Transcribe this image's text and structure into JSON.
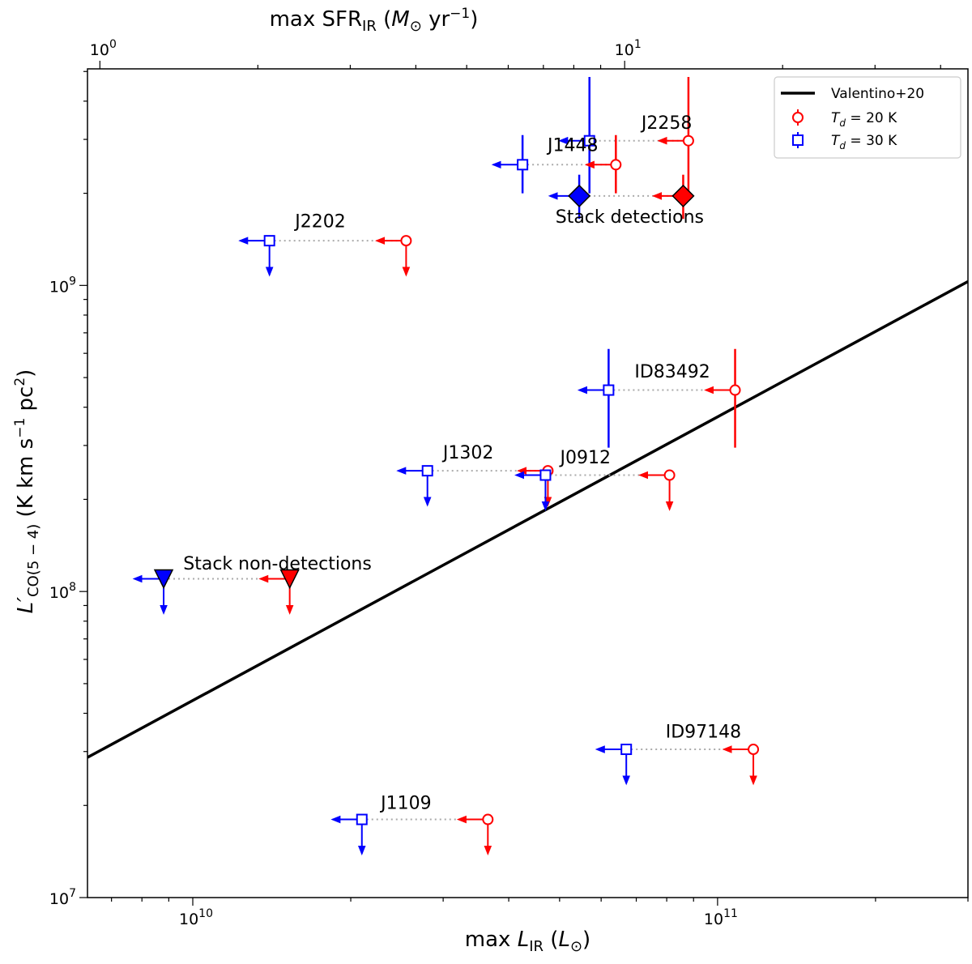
{
  "chart_data": {
    "type": "scatter",
    "title": "",
    "xlabel": "max L_IR (L_⊙)",
    "x2label": "max SFR_IR (M_⊙ yr^-1)",
    "ylabel": "L'_CO(5-4) (K km s^-1 pc^2)",
    "xscale": "log",
    "yscale": "log",
    "xlim": [
      6300000000.0,
      300000000000.0
    ],
    "ylim": [
      10000000.0,
      5100000000.0
    ],
    "x2lim": [
      0.947,
      45.1
    ],
    "grid": false,
    "legend_position": "top-right",
    "xticks": [
      {
        "value": 10000000000.0,
        "label": "10^10"
      },
      {
        "value": 100000000000.0,
        "label": "10^11"
      }
    ],
    "yticks": [
      {
        "value": 10000000.0,
        "label": "10^7"
      },
      {
        "value": 100000000.0,
        "label": "10^8"
      },
      {
        "value": 1000000000.0,
        "label": "10^9"
      }
    ],
    "x2ticks": [
      {
        "value": 1,
        "label": "10^0"
      },
      {
        "value": 10,
        "label": "10^1"
      }
    ],
    "relation": {
      "name": "Valentino+20",
      "color": "#000000",
      "points": [
        [
          6300000000.0,
          28700000.0
        ],
        [
          300000000000.0,
          1030000000.0
        ]
      ]
    },
    "series": [
      {
        "name": "T_d = 20 K",
        "marker": "circle",
        "color": "#ff0000"
      },
      {
        "name": "T_d = 30 K",
        "marker": "square",
        "color": "#0000ff"
      }
    ],
    "sources": [
      {
        "label": "J2258",
        "label_at": [
          80000000000.0,
          3250000000.0
        ],
        "y": 2970000000.0,
        "yerr": [
          2000000000.0,
          4800000000.0
        ],
        "y_upper": false,
        "x20": 88000000000.0,
        "x30": 57000000000.0
      },
      {
        "label": "J1448",
        "label_at": [
          53000000000.0,
          2750000000.0
        ],
        "y": 2480000000.0,
        "yerr": [
          2000000000.0,
          3100000000.0
        ],
        "y_upper": false,
        "x20": 64000000000.0,
        "x30": 42500000000.0
      },
      {
        "label": "J2202",
        "label_at": [
          17500000000.0,
          1550000000.0
        ],
        "y": 1400000000.0,
        "yerr": null,
        "y_upper": true,
        "x20": 25500000000.0,
        "x30": 14000000000.0
      },
      {
        "label": "ID83492",
        "label_at": [
          82000000000.0,
          500000000.0
        ],
        "y": 455000000.0,
        "yerr": [
          295000000.0,
          620000000.0
        ],
        "y_upper": false,
        "x20": 108000000000.0,
        "x30": 62000000000.0
      },
      {
        "label": "J1302",
        "label_at": [
          33500000000.0,
          272000000.0
        ],
        "y": 248000000.0,
        "yerr": null,
        "y_upper": true,
        "x20": 47500000000.0,
        "x30": 28000000000.0
      },
      {
        "label": "J0912",
        "label_at": [
          56000000000.0,
          262000000.0
        ],
        "y": 240000000.0,
        "yerr": null,
        "y_upper": true,
        "x20": 81000000000.0,
        "x30": 47000000000.0
      },
      {
        "label": "ID97148",
        "label_at": [
          94000000000.0,
          33300000.0
        ],
        "y": 30500000.0,
        "yerr": null,
        "y_upper": true,
        "x20": 117000000000.0,
        "x30": 67000000000.0
      },
      {
        "label": "J1109",
        "label_at": [
          25500000000.0,
          19500000.0
        ],
        "y": 18000000.0,
        "yerr": null,
        "y_upper": true,
        "x20": 36500000000.0,
        "x30": 21000000000.0
      }
    ],
    "stacks": [
      {
        "label": "Stack detections",
        "label_at": [
          68000000000.0,
          1600000000.0
        ],
        "marker": "diamond",
        "y": 1960000000.0,
        "yerr": [
          1650000000.0,
          2300000000.0
        ],
        "y_upper": false,
        "x20": 86000000000.0,
        "x30": 54500000000.0
      },
      {
        "label": "Stack non-detections",
        "label_at": [
          14500000000.0,
          118000000.0
        ],
        "marker": "triangle",
        "y": 110000000.0,
        "yerr": null,
        "y_upper": true,
        "x20": 15300000000.0,
        "x30": 8800000000.0
      }
    ]
  }
}
